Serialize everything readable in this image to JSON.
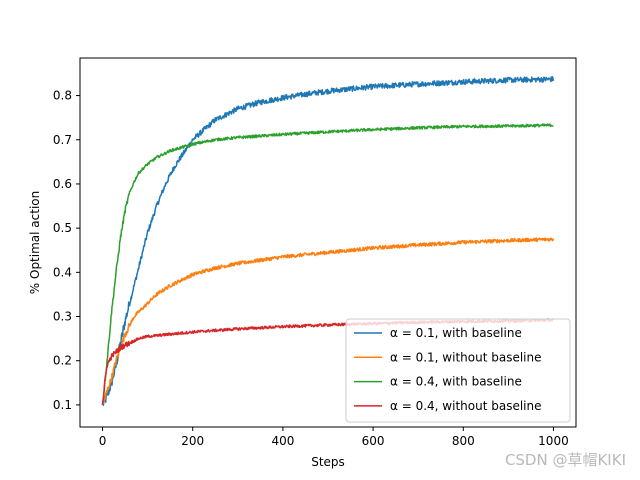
{
  "chart_data": {
    "type": "line",
    "xlabel": "Steps",
    "ylabel": "% Optimal action",
    "xlim": [
      -50,
      1050
    ],
    "ylim": [
      0.05,
      0.885
    ],
    "xticks": [
      0,
      200,
      400,
      600,
      800,
      1000
    ],
    "yticks": [
      0.1,
      0.2,
      0.3,
      0.4,
      0.5,
      0.6,
      0.7,
      0.8
    ],
    "grid": false,
    "legend_position": "lower-right",
    "series": [
      {
        "name": "α = 0.1, with baseline",
        "color": "#1f77b4",
        "x": [
          0,
          10,
          20,
          30,
          40,
          50,
          60,
          70,
          80,
          90,
          100,
          120,
          140,
          160,
          180,
          200,
          250,
          300,
          350,
          400,
          450,
          500,
          600,
          700,
          800,
          900,
          1000
        ],
        "y": [
          0.1,
          0.12,
          0.15,
          0.19,
          0.24,
          0.29,
          0.33,
          0.37,
          0.41,
          0.45,
          0.49,
          0.55,
          0.6,
          0.64,
          0.67,
          0.7,
          0.745,
          0.77,
          0.785,
          0.795,
          0.803,
          0.81,
          0.82,
          0.826,
          0.831,
          0.835,
          0.837
        ]
      },
      {
        "name": "α = 0.1, without baseline",
        "color": "#ff7f0e",
        "x": [
          0,
          10,
          20,
          30,
          40,
          50,
          60,
          70,
          80,
          100,
          120,
          150,
          200,
          250,
          300,
          400,
          500,
          600,
          700,
          800,
          900,
          1000
        ],
        "y": [
          0.1,
          0.13,
          0.16,
          0.2,
          0.23,
          0.26,
          0.28,
          0.3,
          0.31,
          0.33,
          0.35,
          0.37,
          0.395,
          0.41,
          0.42,
          0.435,
          0.445,
          0.455,
          0.462,
          0.468,
          0.472,
          0.475
        ]
      },
      {
        "name": "α = 0.4, with baseline",
        "color": "#2ca02c",
        "x": [
          0,
          10,
          20,
          30,
          40,
          50,
          60,
          70,
          80,
          100,
          120,
          150,
          200,
          250,
          300,
          400,
          500,
          600,
          700,
          800,
          900,
          1000
        ],
        "y": [
          0.1,
          0.2,
          0.31,
          0.4,
          0.48,
          0.54,
          0.58,
          0.605,
          0.625,
          0.645,
          0.66,
          0.675,
          0.69,
          0.7,
          0.705,
          0.712,
          0.718,
          0.723,
          0.727,
          0.73,
          0.731,
          0.733
        ]
      },
      {
        "name": "α = 0.4, without baseline",
        "color": "#d62728",
        "x": [
          0,
          5,
          10,
          20,
          30,
          40,
          50,
          60,
          80,
          100,
          150,
          200,
          300,
          400,
          500,
          600,
          700,
          800,
          900,
          1000
        ],
        "y": [
          0.1,
          0.15,
          0.19,
          0.21,
          0.22,
          0.23,
          0.235,
          0.24,
          0.25,
          0.255,
          0.26,
          0.265,
          0.272,
          0.277,
          0.281,
          0.284,
          0.287,
          0.289,
          0.29,
          0.292
        ]
      }
    ],
    "legend_labels": [
      {
        "prefix": "α",
        "eq": " = 0.1, with baseline"
      },
      {
        "prefix": "α",
        "eq": " = 0.1, without baseline"
      },
      {
        "prefix": "α",
        "eq": " = 0.4, with baseline"
      },
      {
        "prefix": "α",
        "eq": " = 0.4, without baseline"
      }
    ]
  },
  "watermark": "CSDN @草帽KIKI"
}
